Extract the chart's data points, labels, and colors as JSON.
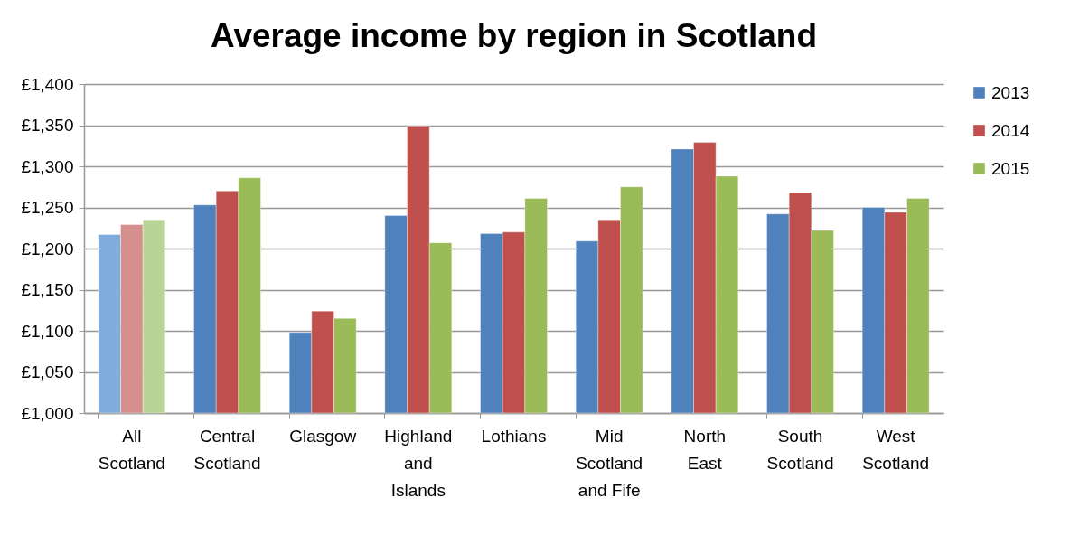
{
  "chart_data": {
    "type": "bar",
    "title": "Average income by region in Scotland",
    "categories": [
      "All Scotland",
      "Central Scotland",
      "Glasgow",
      "Highland and Islands",
      "Lothians",
      "Mid Scotland and Fife",
      "North East",
      "South Scotland",
      "West Scotland"
    ],
    "series": [
      {
        "name": "2013",
        "color": "#4f81bd",
        "colors": [
          "#7facdc",
          "#4f81bd",
          "#4f81bd",
          "#4f81bd",
          "#4f81bd",
          "#4f81bd",
          "#4f81bd",
          "#4f81bd",
          "#4f81bd"
        ],
        "values": [
          1217,
          1253,
          1098,
          1240,
          1218,
          1209,
          1321,
          1242,
          1250
        ]
      },
      {
        "name": "2014",
        "color": "#c0504d",
        "colors": [
          "#d58f8d",
          "#c0504d",
          "#c0504d",
          "#c0504d",
          "#c0504d",
          "#c0504d",
          "#c0504d",
          "#c0504d",
          "#c0504d"
        ],
        "values": [
          1229,
          1270,
          1124,
          1349,
          1220,
          1235,
          1329,
          1268,
          1244
        ]
      },
      {
        "name": "2015",
        "color": "#9bbb59",
        "colors": [
          "#b8d497",
          "#9bbb59",
          "#9bbb59",
          "#9bbb59",
          "#9bbb59",
          "#9bbb59",
          "#9bbb59",
          "#9bbb59",
          "#9bbb59"
        ],
        "values": [
          1235,
          1286,
          1115,
          1207,
          1261,
          1275,
          1288,
          1222,
          1261
        ]
      }
    ],
    "ylim": [
      1000,
      1400
    ],
    "yticks": [
      {
        "value": 1000,
        "label": "£1,000"
      },
      {
        "value": 1050,
        "label": "£1,050"
      },
      {
        "value": 1100,
        "label": "£1,100"
      },
      {
        "value": 1150,
        "label": "£1,150"
      },
      {
        "value": 1200,
        "label": "£1,200"
      },
      {
        "value": 1250,
        "label": "£1,250"
      },
      {
        "value": 1300,
        "label": "£1,300"
      },
      {
        "value": 1350,
        "label": "£1,350"
      },
      {
        "value": 1400,
        "label": "£1,400"
      }
    ],
    "grid": "y",
    "legend": "right"
  }
}
